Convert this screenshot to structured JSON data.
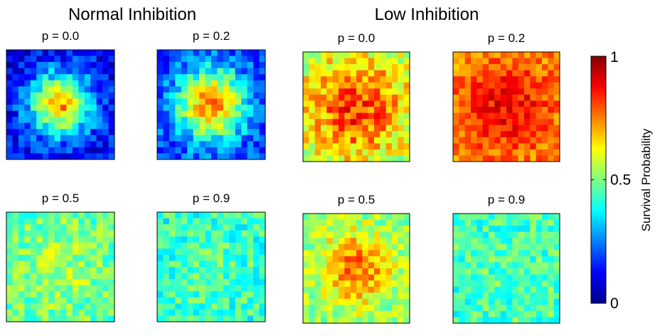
{
  "chart_data": {
    "type": "heatmap",
    "groups": [
      {
        "title": "Normal Inhibition",
        "panels": [
          {
            "title": "p = 0.0",
            "profile": "center",
            "center": 0.72,
            "edge": 0.12,
            "radius": 0.55,
            "noise": 0.1,
            "seed": 11
          },
          {
            "title": "p = 0.2",
            "profile": "center",
            "center": 0.76,
            "edge": 0.18,
            "radius": 0.62,
            "noise": 0.1,
            "seed": 23
          },
          {
            "title": "p = 0.5",
            "profile": "flat",
            "center": 0.55,
            "edge": 0.45,
            "radius": 0.9,
            "noise": 0.1,
            "seed": 37
          },
          {
            "title": "p = 0.9",
            "profile": "flat",
            "center": 0.45,
            "edge": 0.42,
            "radius": 0.9,
            "noise": 0.1,
            "seed": 41
          }
        ]
      },
      {
        "title": "Low Inhibition",
        "panels": [
          {
            "title": "p = 0.0",
            "profile": "center",
            "center": 0.82,
            "edge": 0.55,
            "radius": 0.9,
            "noise": 0.12,
            "seed": 53
          },
          {
            "title": "p = 0.2",
            "profile": "center",
            "center": 0.88,
            "edge": 0.72,
            "radius": 0.9,
            "noise": 0.08,
            "seed": 67
          },
          {
            "title": "p = 0.5",
            "profile": "center",
            "center": 0.76,
            "edge": 0.5,
            "radius": 0.7,
            "noise": 0.1,
            "seed": 71
          },
          {
            "title": "p = 0.9",
            "profile": "flat",
            "center": 0.46,
            "edge": 0.44,
            "radius": 0.9,
            "noise": 0.1,
            "seed": 83
          }
        ]
      }
    ],
    "grid_size": [
      18,
      18
    ],
    "colorbar": {
      "label": "Survival Probability",
      "range": [
        0,
        1
      ],
      "ticks": [
        {
          "value": 0,
          "label": "0"
        },
        {
          "value": 0.5,
          "label": "0.5"
        },
        {
          "value": 1,
          "label": "1"
        }
      ],
      "colormap": "jet"
    }
  }
}
